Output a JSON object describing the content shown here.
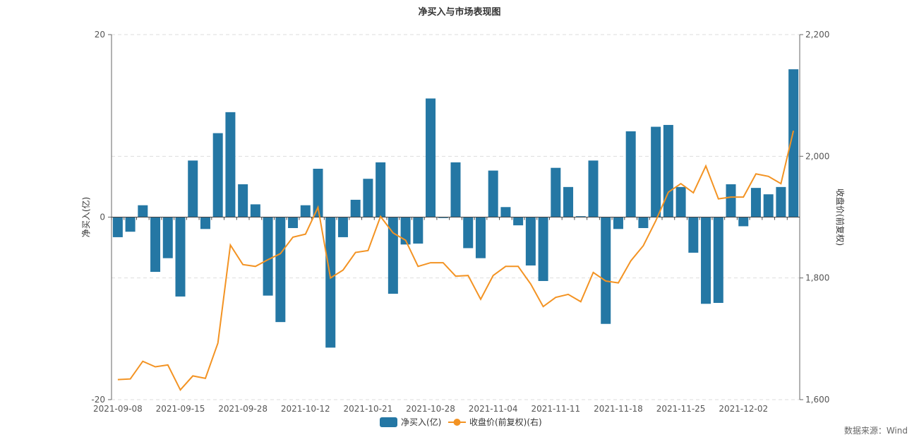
{
  "chart_data": {
    "type": "bar+line",
    "title": "净买入与市场表现图",
    "x_tick_labels": [
      "2021-09-08",
      "2021-09-15",
      "2021-09-28",
      "2021-10-12",
      "2021-10-21",
      "2021-10-28",
      "2021-11-04",
      "2021-11-11",
      "2021-11-18",
      "2021-11-25",
      "2021-12-02"
    ],
    "x_tick_every": 5,
    "left_axis": {
      "label": "净买入(亿)",
      "ylim": [
        -20,
        20
      ],
      "ticks": [
        "20",
        "0",
        "-20"
      ],
      "tick_values": [
        20,
        0,
        -20
      ]
    },
    "right_axis": {
      "label": "收盘价(前复权)",
      "ylim": [
        1600,
        2200
      ],
      "ticks": [
        "2,200",
        "2,000",
        "1,800",
        "1,600"
      ],
      "tick_values": [
        2200,
        2000,
        1800,
        1600
      ]
    },
    "grid": true,
    "legend_position": "bottom",
    "series": [
      {
        "name": "净买入(亿)",
        "type": "bar",
        "axis": "left",
        "color": "#2477a4",
        "values": [
          -2.2,
          -1.6,
          1.3,
          -6.0,
          -4.5,
          -8.7,
          6.2,
          -1.3,
          9.2,
          11.5,
          3.6,
          1.4,
          -8.6,
          -11.5,
          -1.2,
          1.3,
          5.3,
          -14.3,
          -2.2,
          1.9,
          4.2,
          6.0,
          -8.4,
          -3.0,
          -2.9,
          13.0,
          -0.1,
          6.0,
          -3.4,
          -4.5,
          5.1,
          1.1,
          -0.9,
          -5.3,
          -7.0,
          5.4,
          3.3,
          0.1,
          6.2,
          -11.7,
          -1.3,
          9.4,
          -1.2,
          9.9,
          10.1,
          3.3,
          -3.9,
          -9.5,
          -9.4,
          3.6,
          -1.0,
          3.2,
          2.5,
          3.3,
          16.2
        ]
      },
      {
        "name": "收盘价(前复权)(右)",
        "type": "line",
        "axis": "right",
        "color": "#f39323",
        "values": [
          1633,
          1634,
          1663,
          1654,
          1657,
          1616,
          1639,
          1635,
          1693,
          1854,
          1822,
          1819,
          1830,
          1840,
          1867,
          1872,
          1916,
          1800,
          1813,
          1842,
          1845,
          1901,
          1874,
          1862,
          1819,
          1825,
          1825,
          1803,
          1804,
          1765,
          1804,
          1819,
          1819,
          1790,
          1753,
          1768,
          1773,
          1761,
          1809,
          1795,
          1792,
          1828,
          1853,
          1894,
          1941,
          1955,
          1940,
          1984,
          1930,
          1933,
          1933,
          1971,
          1967,
          1955,
          2042
        ]
      }
    ]
  },
  "source": "数据来源：Wind"
}
